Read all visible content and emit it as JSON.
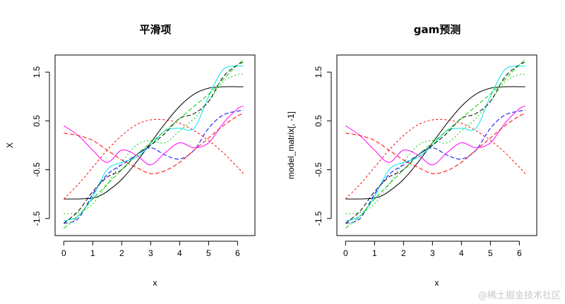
{
  "watermark": "@稀土掘金技术社区",
  "chart_data": [
    {
      "type": "line",
      "title": "平滑项",
      "xlabel": "x",
      "ylabel": "X",
      "xlim": [
        -0.3,
        6.6
      ],
      "ylim": [
        -1.85,
        1.85
      ],
      "xticks": [
        0,
        1,
        2,
        3,
        4,
        5,
        6
      ],
      "xtick_labels": [
        "0",
        "1",
        "2",
        "3",
        "4",
        "5",
        "6"
      ],
      "yticks": [
        -1.5,
        -0.5,
        0.5,
        1.5
      ],
      "ytick_labels": [
        "-1.5",
        "-0.5",
        "0.5",
        "1.5"
      ],
      "series": [
        {
          "name": "s1",
          "color": "#000000",
          "dash": "",
          "x": [
            0,
            0.5,
            1,
            1.3,
            1.6,
            2,
            2.5,
            3,
            3.5,
            4,
            4.5,
            5,
            5.5,
            6,
            6.2
          ],
          "y": [
            -1.1,
            -1.1,
            -1.08,
            -1.02,
            -0.9,
            -0.7,
            -0.35,
            0.05,
            0.45,
            0.8,
            1.05,
            1.17,
            1.2,
            1.2,
            1.2
          ]
        },
        {
          "name": "s2",
          "color": "#ff0000",
          "dash": "3,3",
          "x": [
            0,
            0.5,
            1,
            1.5,
            2,
            2.5,
            3,
            3.5,
            4,
            4.5,
            5,
            5.5,
            6,
            6.2
          ],
          "y": [
            -1.1,
            -0.8,
            -0.45,
            -0.1,
            0.2,
            0.42,
            0.52,
            0.52,
            0.45,
            0.3,
            0.1,
            -0.15,
            -0.45,
            -0.58
          ]
        },
        {
          "name": "s3",
          "color": "#00cd00",
          "dash": "2,3",
          "x": [
            0,
            0.5,
            1,
            1.5,
            2,
            2.5,
            3,
            3.5,
            4,
            4.5,
            5,
            5.5,
            6,
            6.2
          ],
          "y": [
            -1.4,
            -1.38,
            -1.2,
            -0.8,
            -0.35,
            0.0,
            0.1,
            0.05,
            0.3,
            0.55,
            0.9,
            1.3,
            1.45,
            1.45
          ]
        },
        {
          "name": "s4",
          "color": "#0000ff",
          "dash": "6,3",
          "x": [
            0,
            0.5,
            1,
            1.5,
            2,
            2.5,
            3,
            3.5,
            4,
            4.5,
            5,
            5.5,
            6,
            6.2
          ],
          "y": [
            -1.6,
            -1.5,
            -1.0,
            -0.6,
            -0.4,
            -0.2,
            -0.05,
            -0.2,
            -0.28,
            -0.1,
            0.35,
            0.62,
            0.7,
            0.72
          ]
        },
        {
          "name": "s5",
          "color": "#00e5ee",
          "dash": "",
          "x": [
            0,
            0.5,
            1,
            1.5,
            2,
            2.5,
            3,
            3.5,
            4,
            4.5,
            5,
            5.5,
            6,
            6.2
          ],
          "y": [
            -1.55,
            -1.45,
            -1.05,
            -0.5,
            -0.35,
            -0.25,
            0.0,
            0.3,
            0.35,
            0.35,
            1.0,
            1.55,
            1.62,
            1.62
          ]
        },
        {
          "name": "s6",
          "color": "#ff00ff",
          "dash": "",
          "x": [
            0,
            0.5,
            1,
            1.5,
            2,
            2.5,
            3,
            3.5,
            4,
            4.5,
            5,
            5.5,
            6,
            6.2
          ],
          "y": [
            0.4,
            0.2,
            -0.1,
            -0.35,
            -0.1,
            -0.2,
            -0.4,
            -0.15,
            0.05,
            -0.05,
            0.05,
            0.45,
            0.75,
            0.8
          ]
        },
        {
          "name": "s7",
          "color": "#ff0000",
          "dash": "6,3",
          "x": [
            0,
            0.5,
            1,
            1.5,
            2,
            2.5,
            3,
            3.5,
            4,
            4.5,
            5,
            5.5,
            6,
            6.2
          ],
          "y": [
            0.25,
            0.2,
            0.1,
            -0.1,
            -0.3,
            -0.45,
            -0.58,
            -0.52,
            -0.35,
            -0.1,
            0.15,
            0.4,
            0.6,
            0.65
          ]
        },
        {
          "name": "s8",
          "color": "#000000",
          "dash": "6,3",
          "x": [
            0,
            0.5,
            1,
            1.5,
            2,
            2.5,
            3,
            3.5,
            4,
            4.5,
            5,
            5.5,
            6,
            6.2
          ],
          "y": [
            -1.6,
            -1.35,
            -0.95,
            -0.65,
            -0.5,
            -0.2,
            0.0,
            0.25,
            0.55,
            0.65,
            0.9,
            1.4,
            1.65,
            1.7
          ]
        },
        {
          "name": "s9",
          "color": "#00cd00",
          "dash": "6,3",
          "x": [
            0,
            0.5,
            1,
            1.5,
            2,
            2.5,
            3,
            3.5,
            4,
            4.5,
            5,
            5.5,
            6,
            6.2
          ],
          "y": [
            -1.7,
            -1.45,
            -1.1,
            -0.8,
            -0.5,
            -0.2,
            0.05,
            0.3,
            0.55,
            0.8,
            1.05,
            1.35,
            1.65,
            1.75
          ]
        }
      ]
    },
    {
      "type": "line",
      "title": "gam预测",
      "xlabel": "x",
      "ylabel": "model_matrix[, -1]",
      "xlim": [
        -0.3,
        6.6
      ],
      "ylim": [
        -1.85,
        1.85
      ],
      "xticks": [
        0,
        1,
        2,
        3,
        4,
        5,
        6
      ],
      "xtick_labels": [
        "0",
        "1",
        "2",
        "3",
        "4",
        "5",
        "6"
      ],
      "yticks": [
        -1.5,
        -0.5,
        0.5,
        1.5
      ],
      "ytick_labels": [
        "-1.5",
        "-0.5",
        "0.5",
        "1.5"
      ],
      "series": [
        {
          "name": "s1",
          "color": "#000000",
          "dash": "",
          "x": [
            0,
            0.5,
            1,
            1.3,
            1.6,
            2,
            2.5,
            3,
            3.5,
            4,
            4.5,
            5,
            5.5,
            6,
            6.2
          ],
          "y": [
            -1.1,
            -1.1,
            -1.08,
            -1.02,
            -0.9,
            -0.7,
            -0.35,
            0.05,
            0.45,
            0.8,
            1.05,
            1.17,
            1.2,
            1.2,
            1.2
          ]
        },
        {
          "name": "s2",
          "color": "#ff0000",
          "dash": "3,3",
          "x": [
            0,
            0.5,
            1,
            1.5,
            2,
            2.5,
            3,
            3.5,
            4,
            4.5,
            5,
            5.5,
            6,
            6.2
          ],
          "y": [
            -1.1,
            -0.8,
            -0.45,
            -0.1,
            0.2,
            0.42,
            0.52,
            0.52,
            0.45,
            0.3,
            0.1,
            -0.15,
            -0.45,
            -0.58
          ]
        },
        {
          "name": "s3",
          "color": "#00cd00",
          "dash": "2,3",
          "x": [
            0,
            0.5,
            1,
            1.5,
            2,
            2.5,
            3,
            3.5,
            4,
            4.5,
            5,
            5.5,
            6,
            6.2
          ],
          "y": [
            -1.4,
            -1.38,
            -1.2,
            -0.8,
            -0.35,
            0.0,
            0.1,
            0.05,
            0.3,
            0.55,
            0.9,
            1.3,
            1.45,
            1.45
          ]
        },
        {
          "name": "s4",
          "color": "#0000ff",
          "dash": "6,3",
          "x": [
            0,
            0.5,
            1,
            1.5,
            2,
            2.5,
            3,
            3.5,
            4,
            4.5,
            5,
            5.5,
            6,
            6.2
          ],
          "y": [
            -1.6,
            -1.5,
            -1.0,
            -0.6,
            -0.4,
            -0.2,
            -0.05,
            -0.2,
            -0.28,
            -0.1,
            0.35,
            0.62,
            0.7,
            0.72
          ]
        },
        {
          "name": "s5",
          "color": "#00e5ee",
          "dash": "",
          "x": [
            0,
            0.5,
            1,
            1.5,
            2,
            2.5,
            3,
            3.5,
            4,
            4.5,
            5,
            5.5,
            6,
            6.2
          ],
          "y": [
            -1.55,
            -1.45,
            -1.05,
            -0.5,
            -0.35,
            -0.25,
            0.0,
            0.3,
            0.35,
            0.35,
            1.0,
            1.55,
            1.62,
            1.62
          ]
        },
        {
          "name": "s6",
          "color": "#ff00ff",
          "dash": "",
          "x": [
            0,
            0.5,
            1,
            1.5,
            2,
            2.5,
            3,
            3.5,
            4,
            4.5,
            5,
            5.5,
            6,
            6.2
          ],
          "y": [
            0.4,
            0.2,
            -0.1,
            -0.35,
            -0.1,
            -0.2,
            -0.4,
            -0.15,
            0.05,
            -0.05,
            0.05,
            0.45,
            0.75,
            0.8
          ]
        },
        {
          "name": "s7",
          "color": "#ff0000",
          "dash": "6,3",
          "x": [
            0,
            0.5,
            1,
            1.5,
            2,
            2.5,
            3,
            3.5,
            4,
            4.5,
            5,
            5.5,
            6,
            6.2
          ],
          "y": [
            0.25,
            0.2,
            0.1,
            -0.1,
            -0.3,
            -0.45,
            -0.58,
            -0.52,
            -0.35,
            -0.1,
            0.15,
            0.4,
            0.6,
            0.65
          ]
        },
        {
          "name": "s8",
          "color": "#000000",
          "dash": "6,3",
          "x": [
            0,
            0.5,
            1,
            1.5,
            2,
            2.5,
            3,
            3.5,
            4,
            4.5,
            5,
            5.5,
            6,
            6.2
          ],
          "y": [
            -1.6,
            -1.35,
            -0.95,
            -0.65,
            -0.5,
            -0.2,
            0.0,
            0.25,
            0.55,
            0.65,
            0.9,
            1.4,
            1.65,
            1.7
          ]
        },
        {
          "name": "s9",
          "color": "#00cd00",
          "dash": "6,3",
          "x": [
            0,
            0.5,
            1,
            1.5,
            2,
            2.5,
            3,
            3.5,
            4,
            4.5,
            5,
            5.5,
            6,
            6.2
          ],
          "y": [
            -1.7,
            -1.45,
            -1.1,
            -0.8,
            -0.5,
            -0.2,
            0.05,
            0.3,
            0.55,
            0.8,
            1.05,
            1.35,
            1.65,
            1.75
          ]
        }
      ]
    }
  ]
}
